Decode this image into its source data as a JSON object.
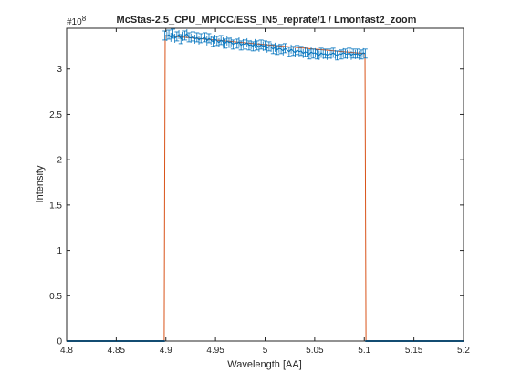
{
  "chart_data": {
    "type": "line",
    "title": "McStas-2.5_CPU_MPICC/ESS_IN5_reprate/1 / Lmonfast2_zoom",
    "xlabel": "Wavelength [AA]",
    "ylabel": "Intensity",
    "exponent_label": "#10",
    "exponent_power": "8",
    "xlim": [
      4.8,
      5.2
    ],
    "ylim": [
      0,
      3.45
    ],
    "x_ticks": [
      4.8,
      4.85,
      4.9,
      4.95,
      5.0,
      5.05,
      5.1,
      5.15,
      5.2
    ],
    "x_tick_labels": [
      "4.8",
      "4.85",
      "4.9",
      "4.95",
      "5",
      "5.05",
      "5.1",
      "5.15",
      "5.2"
    ],
    "y_ticks": [
      0,
      0.5,
      1,
      1.5,
      2,
      2.5,
      3
    ],
    "y_tick_labels": [
      "0",
      "0.5",
      "1",
      "1.5",
      "2",
      "2.5",
      "3"
    ],
    "grid": false,
    "series_color": "#0072BD",
    "envelope_color": "#D95319",
    "x_range": [
      4.8,
      5.2
    ],
    "x_step": 0.002,
    "plateau_x": [
      4.899,
      5.101
    ],
    "plateau_y": [
      3.37,
      3.36,
      3.38,
      3.35,
      3.39,
      3.34,
      3.36,
      3.38,
      3.33,
      3.36,
      3.37,
      3.39,
      3.35,
      3.34,
      3.36,
      3.33,
      3.35,
      3.32,
      3.34,
      3.33,
      3.35,
      3.31,
      3.34,
      3.32,
      3.3,
      3.33,
      3.31,
      3.29,
      3.32,
      3.3,
      3.28,
      3.31,
      3.29,
      3.3,
      3.27,
      3.29,
      3.28,
      3.3,
      3.26,
      3.28,
      3.27,
      3.29,
      3.26,
      3.27,
      3.25,
      3.28,
      3.26,
      3.24,
      3.27,
      3.25,
      3.26,
      3.23,
      3.25,
      3.24,
      3.22,
      3.24,
      3.21,
      3.23,
      3.22,
      3.2,
      3.23,
      3.21,
      3.19,
      3.22,
      3.2,
      3.18,
      3.21,
      3.19,
      3.2,
      3.17,
      3.19,
      3.18,
      3.16,
      3.19,
      3.17,
      3.18,
      3.16,
      3.15,
      3.18,
      3.16,
      3.17,
      3.15,
      3.17,
      3.16,
      3.18,
      3.16,
      3.15,
      3.17,
      3.16,
      3.18,
      3.17,
      3.16,
      3.18,
      3.15,
      3.17,
      3.16,
      3.17,
      3.15,
      3.16,
      3.18,
      3.17
    ],
    "error": 0.05
  }
}
